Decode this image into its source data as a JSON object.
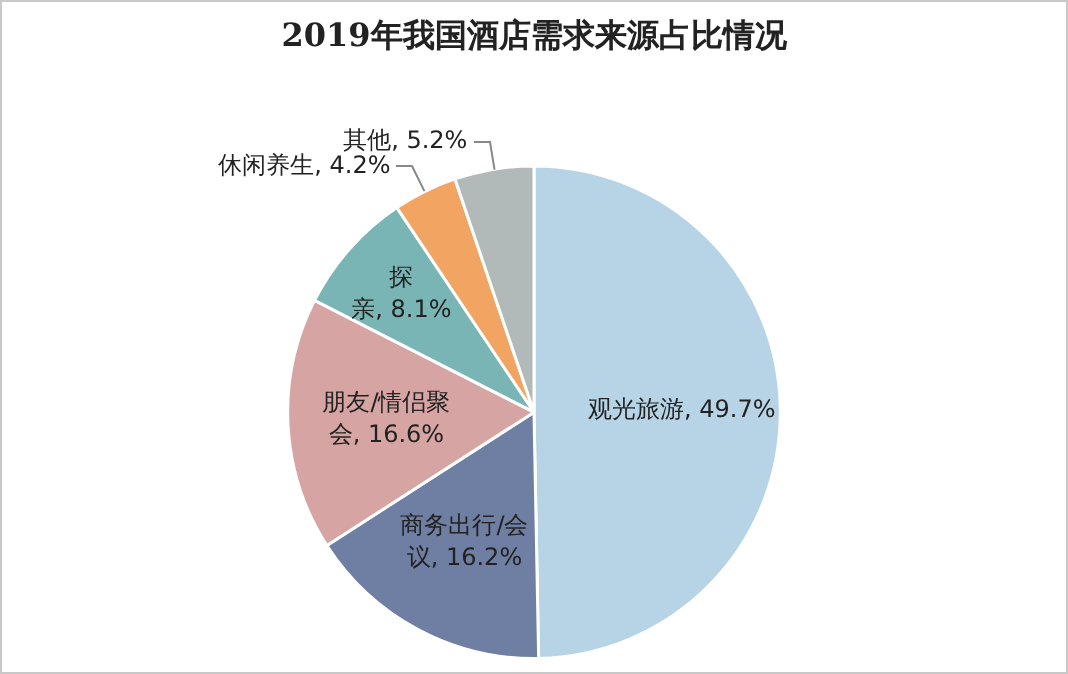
{
  "chart_data": {
    "type": "pie",
    "title": "2019年我国酒店需求来源占比情况",
    "categories": [
      "观光旅游",
      "商务出行/会议",
      "朋友/情侣聚会",
      "探亲",
      "休闲养生",
      "其他"
    ],
    "values": [
      49.7,
      16.2,
      16.6,
      8.1,
      4.2,
      5.2
    ],
    "value_labels": [
      "49.7%",
      "16.2%",
      "16.6%",
      "8.1%",
      "4.2%",
      "5.2%"
    ],
    "colors": [
      "#b7d4e6",
      "#6f7ea3",
      "#d5a4a3",
      "#7ab5b5",
      "#f2a463",
      "#b1b9b9"
    ],
    "legend": false
  }
}
